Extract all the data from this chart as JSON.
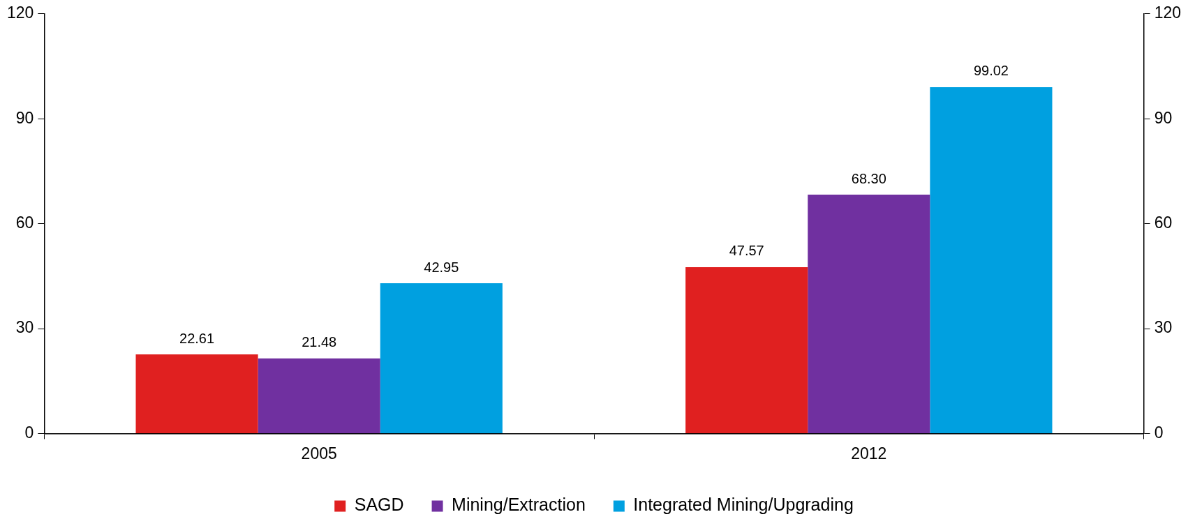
{
  "chart_data": {
    "type": "bar",
    "categories": [
      "2005",
      "2012"
    ],
    "series": [
      {
        "name": "SAGD",
        "color": "#e02020",
        "values": [
          22.61,
          47.57
        ],
        "value_labels": [
          "22.61",
          "47.57"
        ]
      },
      {
        "name": "Mining/Extraction",
        "color": "#7030a0",
        "values": [
          21.48,
          68.3
        ],
        "value_labels": [
          "21.48",
          "68.30"
        ]
      },
      {
        "name": "Integrated Mining/Upgrading",
        "color": "#00a0e0",
        "values": [
          42.95,
          99.02
        ],
        "value_labels": [
          "42.95",
          "99.02"
        ]
      }
    ],
    "ylim": [
      0,
      120
    ],
    "yticks": [
      0,
      30,
      60,
      90,
      120
    ],
    "y2lim": [
      0,
      120
    ],
    "y2ticks": [
      0,
      30,
      60,
      90,
      120
    ],
    "grid": false,
    "legend": "bottom"
  }
}
